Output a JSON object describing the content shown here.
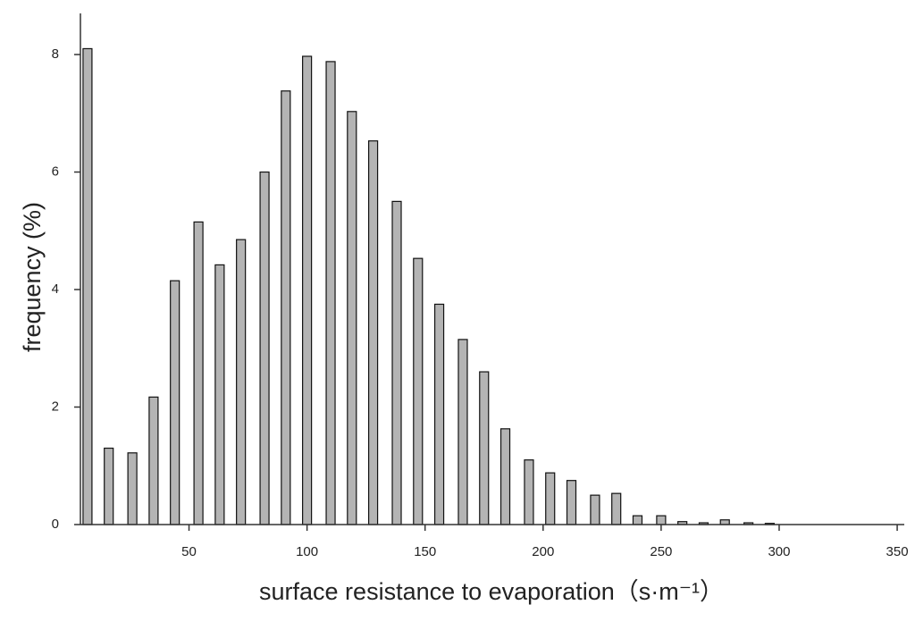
{
  "chart_data": {
    "type": "bar",
    "xlabel": "surface resistance to evaporation（s·m⁻¹）",
    "ylabel": "frequency (%)",
    "x": [
      7,
      16,
      26,
      35,
      44,
      54,
      63,
      72,
      82,
      91,
      100,
      110,
      119,
      128,
      138,
      147,
      156,
      166,
      175,
      184,
      194,
      203,
      212,
      222,
      231,
      240,
      250,
      259,
      268,
      277,
      287,
      296
    ],
    "values": [
      8.1,
      1.3,
      1.22,
      2.17,
      4.15,
      5.15,
      4.42,
      4.85,
      6.0,
      7.38,
      7.97,
      7.88,
      7.03,
      6.53,
      5.5,
      4.53,
      3.75,
      3.15,
      2.6,
      1.63,
      1.1,
      0.88,
      0.75,
      0.5,
      0.53,
      0.15,
      0.15,
      0.05,
      0.03,
      0.08,
      0.03,
      0.02
    ],
    "color": "#b4b4b4",
    "xlim": [
      4,
      353
    ],
    "xticks": [
      50,
      100,
      150,
      200,
      250,
      300,
      350
    ],
    "ylim": [
      0,
      8.7
    ],
    "yticks": [
      0,
      2,
      4,
      6,
      8
    ],
    "grid": false
  }
}
